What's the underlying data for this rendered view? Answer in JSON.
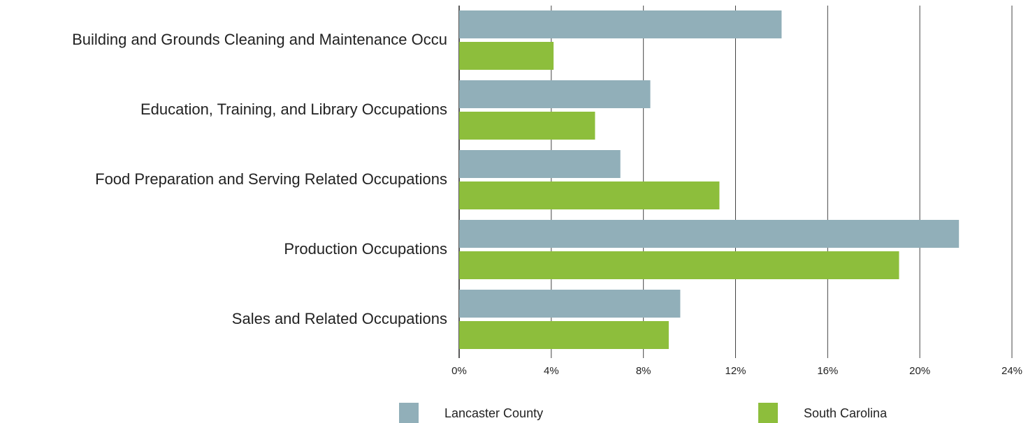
{
  "chart_data": {
    "type": "bar",
    "orientation": "horizontal",
    "categories": [
      "Building and Grounds Cleaning and Maintenance Occu",
      "Education, Training, and Library Occupations",
      "Food Preparation and Serving Related Occupations",
      "Production Occupations",
      "Sales and Related Occupations"
    ],
    "series": [
      {
        "name": "Lancaster County",
        "color": "#91afb9",
        "values": [
          14.0,
          8.3,
          7.0,
          21.7,
          9.6
        ]
      },
      {
        "name": "South Carolina",
        "color": "#8dbe3c",
        "values": [
          4.1,
          5.9,
          11.3,
          19.1,
          9.1
        ]
      }
    ],
    "xlim": [
      0,
      24
    ],
    "xticks": [
      {
        "value": 0,
        "label": "0%"
      },
      {
        "value": 4,
        "label": "4%"
      },
      {
        "value": 8,
        "label": "8%"
      },
      {
        "value": 12,
        "label": "12%"
      },
      {
        "value": 16,
        "label": "16%"
      },
      {
        "value": 20,
        "label": "20%"
      },
      {
        "value": 24,
        "label": "24%"
      }
    ],
    "grid": true,
    "legend": "bottom"
  }
}
